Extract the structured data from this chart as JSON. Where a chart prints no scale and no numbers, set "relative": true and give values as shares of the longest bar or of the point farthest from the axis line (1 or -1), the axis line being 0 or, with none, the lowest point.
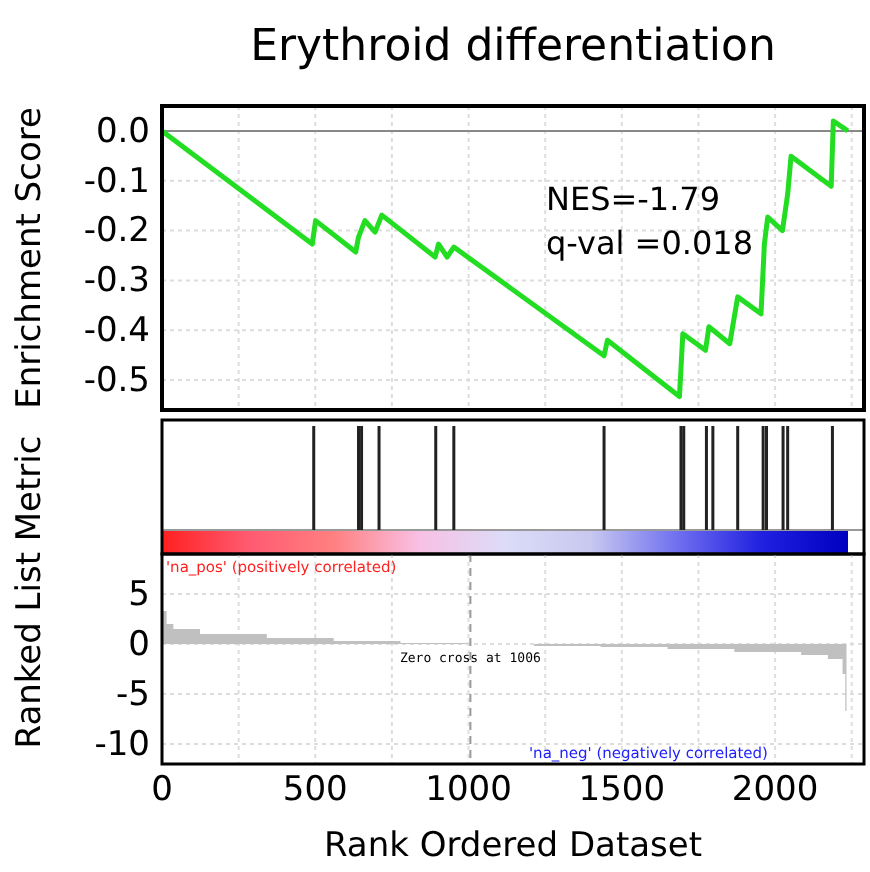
{
  "chart_data": [
    {
      "type": "line",
      "title": "Erythroid differentiation",
      "ylabel": "Enrichment Score",
      "color": "#22dd22",
      "x": [
        0,
        490,
        501,
        632,
        641,
        662,
        695,
        717,
        891,
        902,
        930,
        952,
        1442,
        1453,
        1688,
        1699,
        1773,
        1784,
        1852,
        1878,
        1954,
        1965,
        1976,
        2024,
        2041,
        2052,
        2183,
        2190,
        2237
      ],
      "values": [
        0,
        -0.227,
        -0.18,
        -0.243,
        -0.213,
        -0.18,
        -0.203,
        -0.169,
        -0.253,
        -0.227,
        -0.253,
        -0.233,
        -0.451,
        -0.42,
        -0.533,
        -0.407,
        -0.44,
        -0.393,
        -0.427,
        -0.333,
        -0.367,
        -0.227,
        -0.173,
        -0.2,
        -0.127,
        -0.051,
        -0.111,
        0.02,
        0
      ],
      "xlim": [
        0,
        2290
      ],
      "xticks": [
        0,
        250,
        500,
        750,
        1000,
        1250,
        1500,
        1750,
        2000,
        2250
      ],
      "ylim": [
        -0.56,
        0.05
      ],
      "yticks": [
        {
          "value": 0,
          "label": "0.0"
        },
        -0.1,
        -0.2,
        -0.3,
        -0.4,
        -0.5
      ],
      "tick_labels": "y",
      "grid": true,
      "ref_lines": [
        {
          "axis": "y",
          "value": 0,
          "color": "#888888"
        }
      ],
      "annotations": [
        "NES=-1.79",
        "q-val =0.018"
      ]
    },
    {
      "type": "bar",
      "relative": true,
      "color": "#222222",
      "x": [
        495,
        641,
        651,
        708,
        893,
        952,
        1442,
        1693,
        1702,
        1776,
        1797,
        1878,
        1961,
        1972,
        2026,
        2041,
        2187
      ],
      "values": [
        1,
        1,
        1,
        1,
        1,
        1,
        1,
        1,
        1,
        1,
        1,
        1,
        1,
        1,
        1,
        1,
        1
      ],
      "xlim": [
        0,
        2290
      ],
      "tick_labels": false
    },
    {
      "type": "area",
      "ylabel": "Ranked List Metric",
      "xlabel": "Rank Ordered Dataset",
      "color": "#c0c0c0",
      "x": [
        0,
        15,
        37,
        124,
        342,
        560,
        778,
        996,
        1214,
        1431,
        1649,
        1867,
        2085,
        2172,
        2220,
        2229,
        2233
      ],
      "values": [
        3.3,
        2,
        1.5,
        1,
        0.6,
        0.3,
        0.1,
        0,
        -0.2,
        -0.3,
        -0.5,
        -0.8,
        -1.1,
        -1.5,
        -3,
        -6.7,
        -11
      ],
      "xlim": [
        0,
        2290
      ],
      "xticks": [
        0,
        {
          "value": 250,
          "label": null
        },
        500,
        {
          "value": 750,
          "label": null
        },
        1000,
        {
          "value": 1250,
          "label": null
        },
        1500,
        {
          "value": 1750,
          "label": null
        },
        2000,
        {
          "value": 2250,
          "label": null
        }
      ],
      "ylim": [
        -12,
        9
      ],
      "yticks": [
        5,
        0,
        -5,
        -10
      ],
      "grid": true,
      "ref_lines": [
        {
          "axis": "x",
          "value": 1006,
          "label": "Zero cross at 1006",
          "line_style": "dashed",
          "color": "#999999"
        }
      ],
      "annotations": [
        "'na_pos' (positively correlated)",
        "'na_neg' (negatively correlated)"
      ]
    }
  ]
}
